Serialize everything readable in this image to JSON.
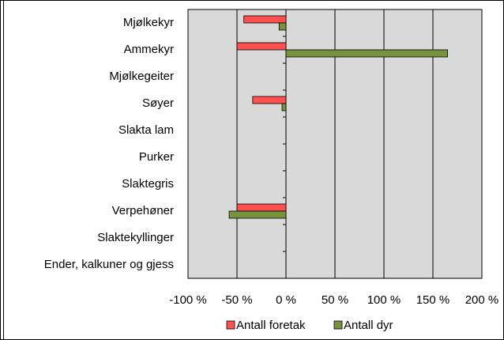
{
  "chart_data": {
    "type": "bar",
    "orientation": "horizontal",
    "categories": [
      "Mjølkekyr",
      "Ammekyr",
      "Mjølkegeiter",
      "Søyer",
      "Slakta lam",
      "Purker",
      "Slaktegris",
      "Verpehøner",
      "Slaktekyllinger",
      "Ender, kalkuner og gjess"
    ],
    "series": [
      {
        "name": "Antall foretak",
        "color": "#ff5050",
        "values": [
          -43,
          -50,
          null,
          -34,
          null,
          null,
          null,
          -50,
          null,
          null
        ]
      },
      {
        "name": "Antall dyr",
        "color": "#77933c",
        "values": [
          -7,
          165,
          null,
          -4,
          null,
          null,
          null,
          -58,
          null,
          null
        ]
      }
    ],
    "xlim": [
      -100,
      200
    ],
    "xticks": [
      {
        "value": -100,
        "label": "-100 %"
      },
      {
        "value": -50,
        "label": "-50 %"
      },
      {
        "value": 0,
        "label": "0 %"
      },
      {
        "value": 50,
        "label": "50 %"
      },
      {
        "value": 100,
        "label": "100 %"
      },
      {
        "value": 150,
        "label": "150 %"
      },
      {
        "value": 200,
        "label": "200 %"
      }
    ],
    "grid": true,
    "plot_background": "#d9d9d9",
    "legend": "bottom"
  }
}
